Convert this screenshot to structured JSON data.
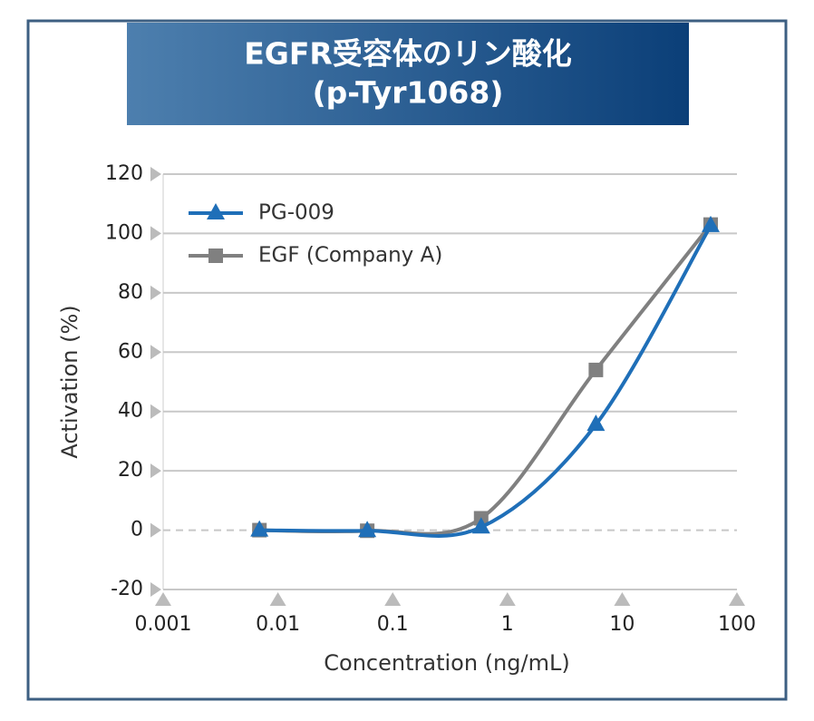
{
  "chart_data": {
    "type": "line",
    "title": [
      "EGFR受容体のリン酸化",
      "(p-Tyr1068)"
    ],
    "x_label": "Concentration (ng/mL)",
    "y_label": "Activation (%)",
    "x": [
      0.0069,
      0.06,
      0.59,
      5.9,
      59
    ],
    "series": [
      {
        "name": "PG-009",
        "color": "#1f6fb8",
        "marker": "triangle",
        "values": [
          0,
          -0.2,
          1,
          35.6,
          102.6
        ]
      },
      {
        "name": "EGF (Company A)",
        "color": "#808080",
        "marker": "square",
        "values": [
          0,
          -0.2,
          4,
          54,
          103
        ]
      }
    ],
    "xscale": "log",
    "xlim": [
      0.001,
      100
    ],
    "xticks": [
      0.001,
      0.01,
      0.1,
      1,
      10,
      100
    ],
    "ylim": [
      -20,
      120
    ],
    "yticks": [
      -20,
      0,
      20,
      40,
      60,
      80,
      100,
      120
    ],
    "grid": true,
    "legend": "upper left"
  }
}
